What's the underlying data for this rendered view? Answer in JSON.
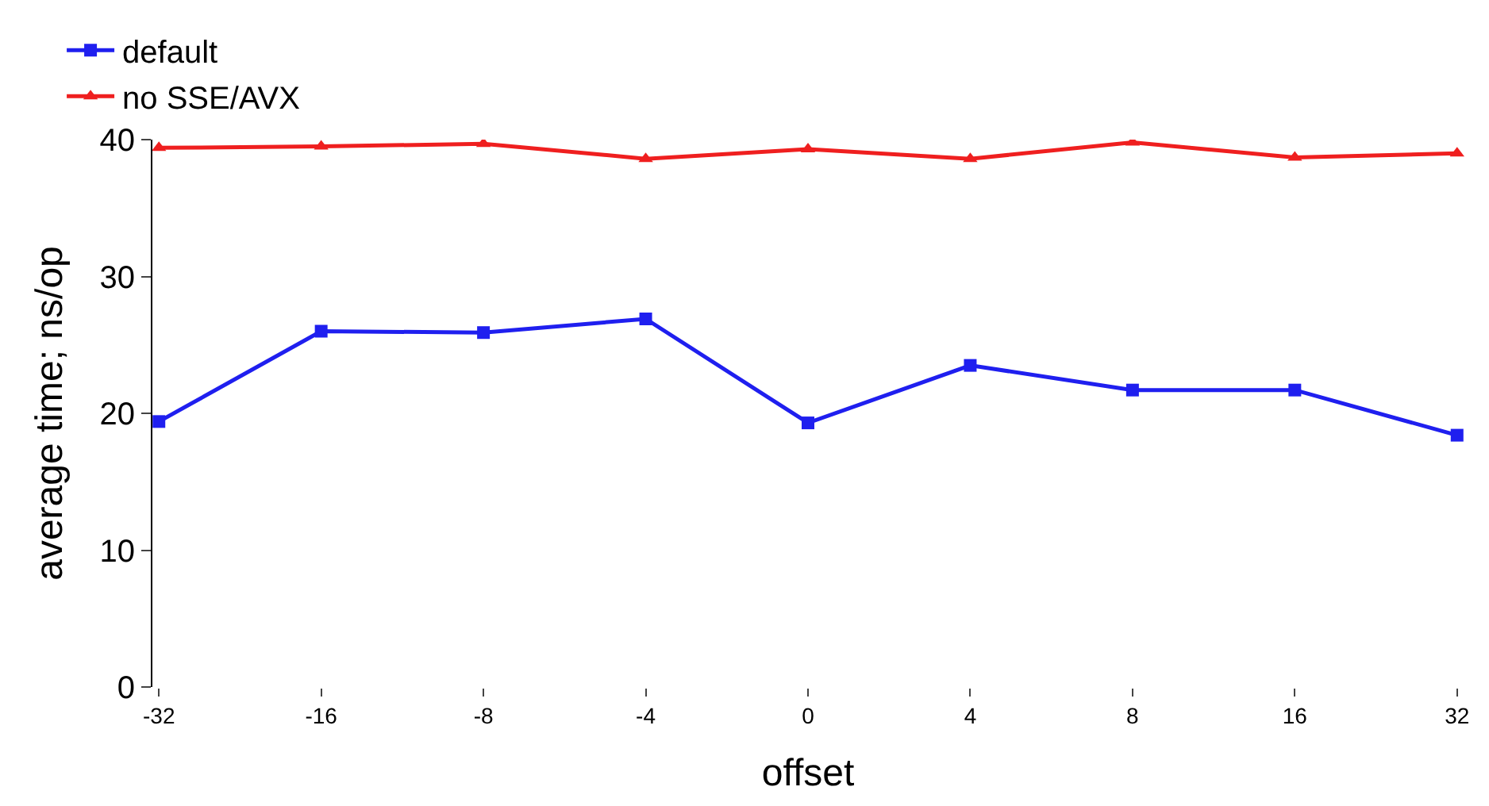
{
  "chart_data": {
    "type": "line",
    "xlabel": "offset",
    "ylabel": "average time; ns/op",
    "categories": [
      "-32",
      "-16",
      "-8",
      "-4",
      "0",
      "4",
      "8",
      "16",
      "32"
    ],
    "series": [
      {
        "name": "default",
        "color": "#1f1fef",
        "marker": "square",
        "values": [
          19.4,
          26.0,
          25.9,
          26.9,
          19.3,
          23.5,
          21.7,
          21.7,
          18.4
        ]
      },
      {
        "name": "no SSE/AVX",
        "color": "#ef1f1f",
        "marker": "triangle",
        "values": [
          39.4,
          39.5,
          39.7,
          38.6,
          39.3,
          38.6,
          39.8,
          38.7,
          39.0
        ]
      }
    ],
    "ylim": [
      0,
      40
    ],
    "yticks": [
      0,
      10,
      20,
      30,
      40
    ],
    "legend": "top left",
    "line_style": "solid"
  }
}
